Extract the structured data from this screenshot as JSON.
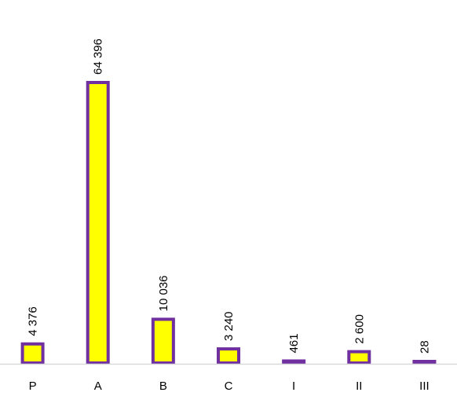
{
  "chart_data": {
    "type": "bar",
    "categories": [
      "P",
      "A",
      "B",
      "C",
      "I",
      "II",
      "III"
    ],
    "values": [
      4376,
      64396,
      10036,
      3240,
      461,
      2600,
      28
    ],
    "data_labels": [
      "4 376",
      "64 396",
      "10 036",
      "3 240",
      "461",
      "2 600",
      "28"
    ],
    "ylim": [
      0,
      70000
    ],
    "grid": false,
    "legend": "none",
    "colors": {
      "bar_fill": "#ffff00",
      "bar_stroke": "#7030a0",
      "axis": "#d9d9d9"
    }
  }
}
